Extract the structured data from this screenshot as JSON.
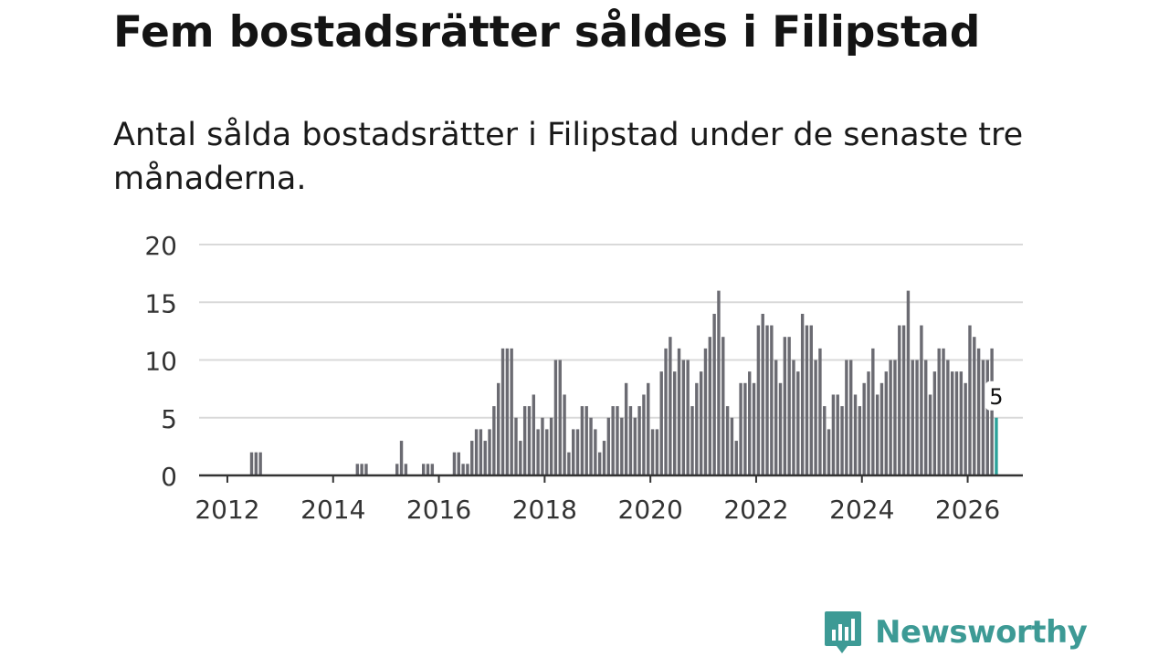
{
  "title": "Fem bostadsrätter såldes i Filipstad",
  "subtitle": "Antal sålda bostadsrätter i Filipstad under de senaste tre månaderna.",
  "brand": {
    "name": "Newsworthy",
    "color": "#3d9a95",
    "icon": "newsworthy-logo-icon"
  },
  "chart_data": {
    "type": "bar",
    "title": "Antal sålda bostadsrätter i Filipstad",
    "xlabel": "",
    "ylabel": "",
    "ylim": [
      0,
      20
    ],
    "yticks": [
      0,
      5,
      10,
      15,
      20
    ],
    "xticks": [
      {
        "label": "2012",
        "year": 2012
      },
      {
        "label": "2014",
        "year": 2014
      },
      {
        "label": "2016",
        "year": 2016
      },
      {
        "label": "2018",
        "year": 2018
      },
      {
        "label": "2020",
        "year": 2020
      },
      {
        "label": "2022",
        "year": 2022
      },
      {
        "label": "2024",
        "year": 2024
      },
      {
        "label": "2026",
        "year": 2026
      }
    ],
    "grid": true,
    "start": "2011-10",
    "interval": "month",
    "bar_color": "#6b6b72",
    "highlight_color": "#2aa19a",
    "highlight_label": "5",
    "values": [
      0,
      0,
      0,
      0,
      0,
      0,
      0,
      0,
      2,
      2,
      2,
      0,
      0,
      0,
      0,
      0,
      0,
      0,
      0,
      0,
      0,
      0,
      0,
      0,
      0,
      0,
      0,
      0,
      0,
      0,
      0,
      0,
      1,
      1,
      1,
      0,
      0,
      0,
      0,
      0,
      0,
      1,
      3,
      1,
      0,
      0,
      0,
      1,
      1,
      1,
      0,
      0,
      0,
      0,
      2,
      2,
      1,
      1,
      3,
      4,
      4,
      3,
      4,
      6,
      8,
      11,
      11,
      11,
      5,
      3,
      6,
      6,
      7,
      4,
      5,
      4,
      5,
      10,
      10,
      7,
      2,
      4,
      4,
      6,
      6,
      5,
      4,
      2,
      3,
      5,
      6,
      6,
      5,
      8,
      6,
      5,
      6,
      7,
      8,
      4,
      4,
      9,
      11,
      12,
      9,
      11,
      10,
      10,
      6,
      8,
      9,
      11,
      12,
      14,
      16,
      12,
      6,
      5,
      3,
      8,
      8,
      9,
      8,
      13,
      14,
      13,
      13,
      10,
      8,
      12,
      12,
      10,
      9,
      14,
      13,
      13,
      10,
      11,
      6,
      4,
      7,
      7,
      6,
      10,
      10,
      7,
      6,
      8,
      9,
      11,
      7,
      8,
      9,
      10,
      10,
      13,
      13,
      16,
      10,
      10,
      13,
      10,
      7,
      9,
      11,
      11,
      10,
      9,
      9,
      9,
      8,
      13,
      12,
      11,
      10,
      10,
      11,
      5
    ]
  }
}
